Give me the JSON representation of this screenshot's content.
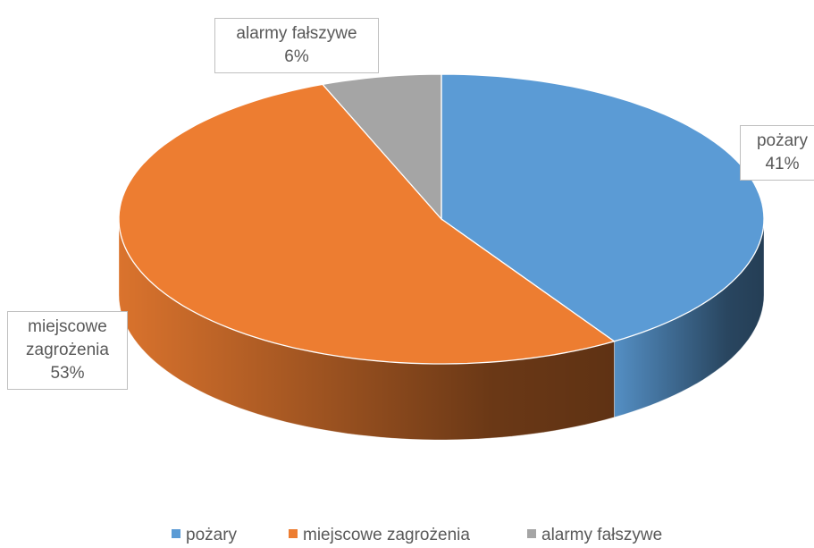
{
  "chart_data": {
    "type": "pie",
    "categories": [
      "pożary",
      "miejscowe zagrożenia",
      "alarmy fałszywe"
    ],
    "values": [
      41,
      53,
      6
    ],
    "value_labels": [
      "41%",
      "53%",
      "6%"
    ],
    "colors": [
      "#5b9bd5",
      "#ed7d31",
      "#a5a5a5"
    ],
    "legend": "bottom"
  }
}
